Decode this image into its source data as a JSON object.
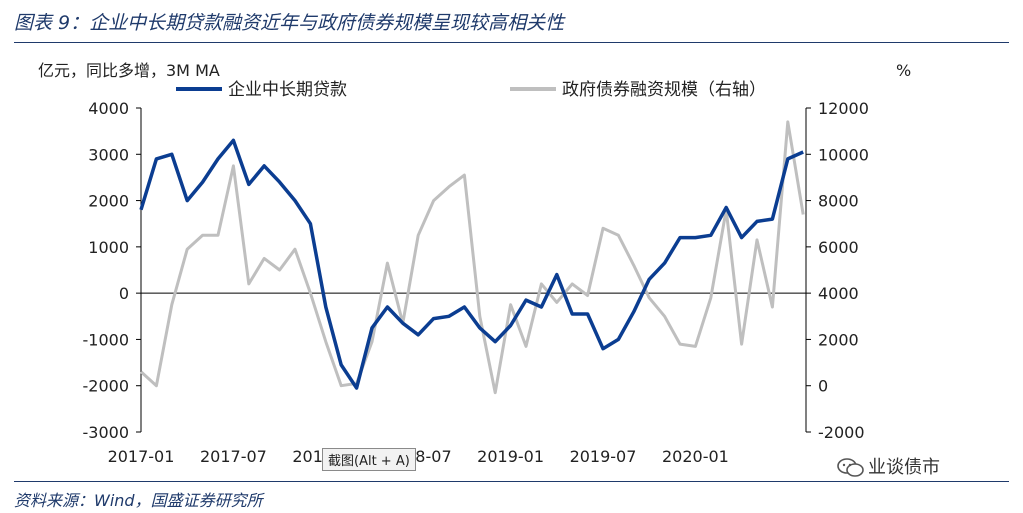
{
  "title": "图表 9：企业中长期贷款融资近年与政府债券规模呈现较高相关性",
  "source": "资料来源：Wind，国盛证券研究所",
  "tooltip": "截图(Alt + A)",
  "watermark": "业谈债市",
  "colors": {
    "loans": "#0b3d91",
    "gov": "#bfbfbf",
    "text": "#1f3a6b",
    "axis": "#000000"
  },
  "chart_data": {
    "type": "line",
    "left_unit": "亿元，同比多增，3M MA",
    "right_unit": "%",
    "x_ticks": [
      "2017-01",
      "2017-07",
      "2018-01",
      "2018-07",
      "2019-01",
      "2019-07",
      "2020-01"
    ],
    "x_tick_index": [
      0,
      6,
      12,
      18,
      24,
      30,
      36
    ],
    "ylim_left": [
      -3000,
      4000
    ],
    "yticks_left": [
      4000,
      3000,
      2000,
      1000,
      0,
      -1000,
      -2000,
      -3000
    ],
    "ylim_right": [
      -2000,
      12000
    ],
    "yticks_right": [
      12000,
      10000,
      8000,
      6000,
      4000,
      2000,
      0,
      -2000
    ],
    "series": [
      {
        "name": "企业中长期贷款",
        "axis": "left",
        "values": [
          1800,
          2900,
          3000,
          2000,
          2400,
          2900,
          3300,
          2350,
          2750,
          2400,
          2000,
          1500,
          -300,
          -1550,
          -2050,
          -750,
          -300,
          -650,
          -900,
          -550,
          -500,
          -300,
          -750,
          -1050,
          -700,
          -150,
          -300,
          400,
          -450,
          -450,
          -1200,
          -1000,
          -400,
          300,
          650,
          1200,
          1200,
          1250,
          1850,
          1200,
          1550,
          1600,
          2900,
          3050
        ]
      },
      {
        "name": "政府债券融资规模（右轴）",
        "axis": "right",
        "values": [
          600,
          0,
          3500,
          5900,
          6500,
          6500,
          9500,
          4400,
          5500,
          5000,
          5900,
          4000,
          1900,
          0,
          100,
          1900,
          5300,
          2700,
          6500,
          8000,
          8600,
          9100,
          3000,
          -300,
          3500,
          1700,
          4400,
          3600,
          4400,
          3900,
          6800,
          6500,
          5200,
          3800,
          3000,
          1800,
          1700,
          3800,
          7600,
          1800,
          6300,
          3400,
          11400,
          7400
        ]
      }
    ]
  }
}
